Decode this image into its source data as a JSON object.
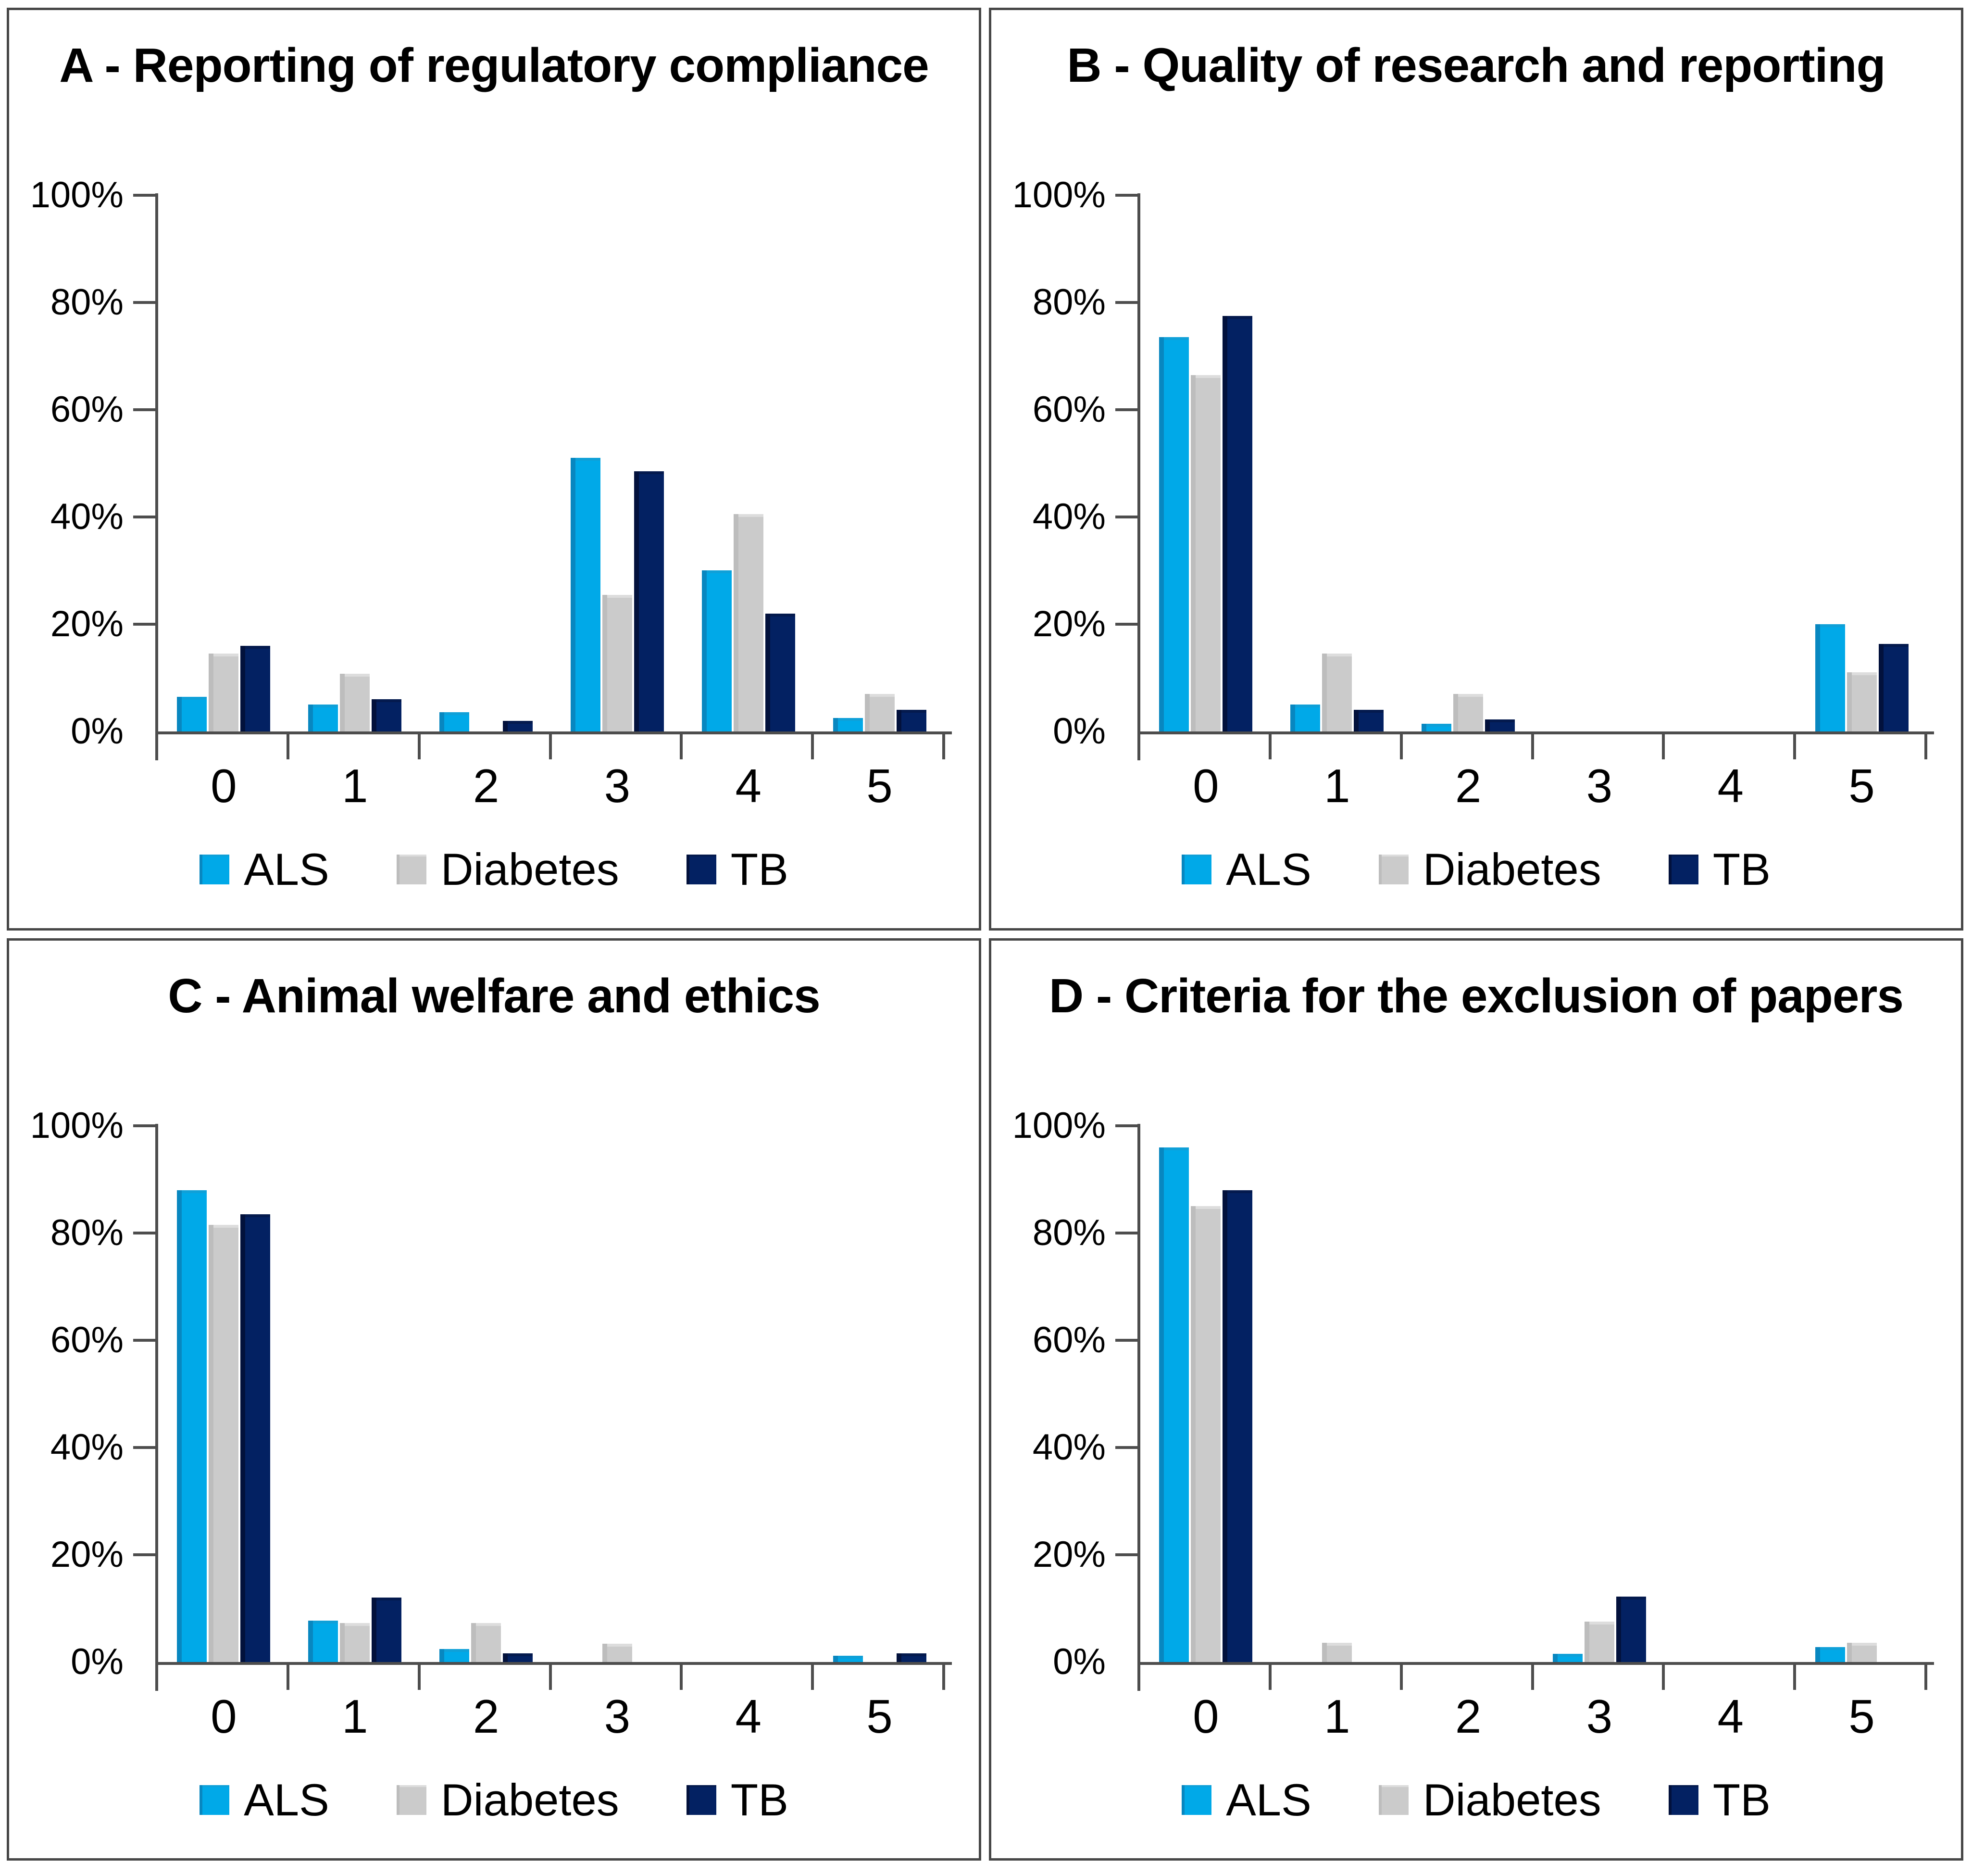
{
  "figure": {
    "background": "#ffffff",
    "panel_border_color": "#474747",
    "axis_color": "#4d4d4d",
    "text_color": "#000000",
    "series_styles": [
      {
        "name": "ALS",
        "color": "#00a9e8",
        "edge": "#0887c0",
        "top": "#0fa0d8"
      },
      {
        "name": "Diabetes",
        "color": "#cbcbcb",
        "edge": "#bdbdbd",
        "top": "#dddddd"
      },
      {
        "name": "TB",
        "color": "#032162",
        "edge": "#02113c",
        "top": "#041a4e"
      }
    ]
  },
  "chart_data": [
    {
      "type": "bar",
      "title": "A - Reporting of regulatory compliance",
      "categories": [
        "0",
        "1",
        "2",
        "3",
        "4",
        "5"
      ],
      "ylim": [
        0,
        100
      ],
      "y_ticks": [
        "0%",
        "20%",
        "40%",
        "60%",
        "80%",
        "100%"
      ],
      "grid": false,
      "legend_position": "bottom",
      "series": [
        {
          "name": "ALS",
          "values": [
            6.5,
            5,
            3.6,
            51,
            30,
            2.5
          ]
        },
        {
          "name": "Diabetes",
          "values": [
            14.5,
            10.8,
            0,
            25.5,
            40.5,
            7
          ]
        },
        {
          "name": "TB",
          "values": [
            16,
            6,
            2,
            48.5,
            22,
            4
          ]
        }
      ]
    },
    {
      "type": "bar",
      "title": "B - Quality of research and reporting",
      "categories": [
        "0",
        "1",
        "2",
        "3",
        "4",
        "5"
      ],
      "ylim": [
        0,
        100
      ],
      "y_ticks": [
        "0%",
        "20%",
        "40%",
        "60%",
        "80%",
        "100%"
      ],
      "grid": false,
      "legend_position": "bottom",
      "series": [
        {
          "name": "ALS",
          "values": [
            73.5,
            5,
            1.4,
            0,
            0,
            20
          ]
        },
        {
          "name": "Diabetes",
          "values": [
            66.5,
            14.5,
            7,
            0,
            0,
            11
          ]
        },
        {
          "name": "TB",
          "values": [
            77.5,
            4,
            2.2,
            0,
            0,
            16.3
          ]
        }
      ]
    },
    {
      "type": "bar",
      "title": "C - Animal welfare and ethics",
      "categories": [
        "0",
        "1",
        "2",
        "3",
        "4",
        "5"
      ],
      "ylim": [
        0,
        100
      ],
      "y_ticks": [
        "0%",
        "20%",
        "40%",
        "60%",
        "80%",
        "100%"
      ],
      "grid": false,
      "legend_position": "bottom",
      "series": [
        {
          "name": "ALS",
          "values": [
            88,
            7.7,
            2.4,
            0,
            0,
            1.2
          ]
        },
        {
          "name": "Diabetes",
          "values": [
            81.5,
            7.3,
            7.3,
            3.4,
            0,
            0
          ]
        },
        {
          "name": "TB",
          "values": [
            83.5,
            12,
            1.6,
            0,
            0,
            1.6
          ]
        }
      ]
    },
    {
      "type": "bar",
      "title": "D - Criteria for the exclusion of papers",
      "categories": [
        "0",
        "1",
        "2",
        "3",
        "4",
        "5"
      ],
      "ylim": [
        0,
        100
      ],
      "y_ticks": [
        "0%",
        "20%",
        "40%",
        "60%",
        "80%",
        "100%"
      ],
      "grid": false,
      "legend_position": "bottom",
      "series": [
        {
          "name": "ALS",
          "values": [
            96,
            0,
            0,
            1.5,
            0,
            2.8
          ]
        },
        {
          "name": "Diabetes",
          "values": [
            85,
            3.6,
            0,
            7.5,
            0,
            3.6
          ]
        },
        {
          "name": "TB",
          "values": [
            88,
            0,
            0,
            12.2,
            0,
            0
          ]
        }
      ]
    }
  ]
}
